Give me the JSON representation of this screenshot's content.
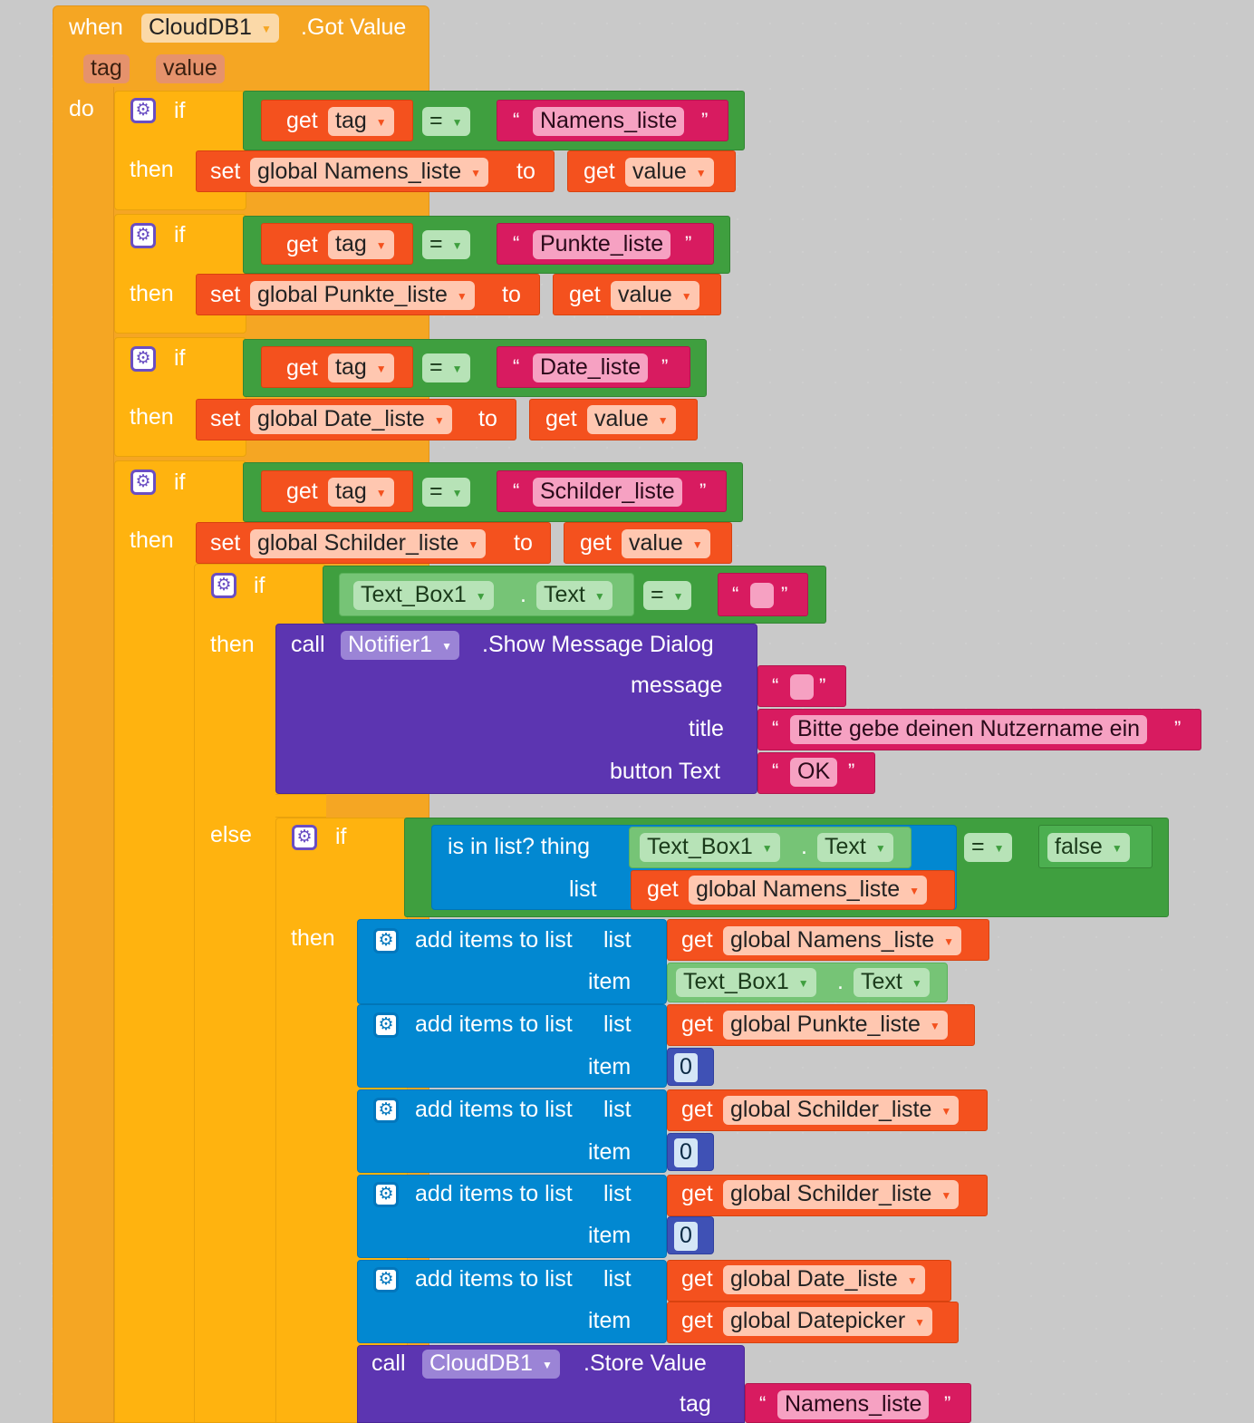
{
  "event": {
    "when": "when",
    "component": "CloudDB1",
    "event_name": ".Got Value",
    "params": [
      "tag",
      "value"
    ],
    "do": "do"
  },
  "kw": {
    "if": "if",
    "then": "then",
    "else": "else",
    "get": "get",
    "set": "set",
    "to": "to",
    "call": "call",
    "eq": "=",
    "tag": "tag",
    "value": "value",
    "dot": ".",
    "open_quote": "“",
    "close_quote": "”"
  },
  "branches": [
    {
      "tag_text": "Namens_liste",
      "global": "global Namens_liste"
    },
    {
      "tag_text": "Punkte_liste",
      "global": "global Punkte_liste"
    },
    {
      "tag_text": "Date_liste",
      "global": "global Date_liste"
    },
    {
      "tag_text": "Schilder_liste",
      "global": "global Schilder_liste"
    }
  ],
  "textbox": {
    "component": "Text_Box1",
    "property": "Text"
  },
  "notifier": {
    "component": "Notifier1",
    "method": ".Show Message Dialog",
    "message_label": "message",
    "title_label": "title",
    "button_label": "button Text",
    "title": "Bitte gebe deinen Nutzername ein",
    "button": "OK"
  },
  "inlist": {
    "label": "is in list? thing",
    "list_label": "list",
    "list_var": "global Namens_liste",
    "false_value": "false"
  },
  "add_items": {
    "label": "add items to list",
    "list_label": "list",
    "item_label": "item",
    "rows": [
      {
        "list": "global Namens_liste",
        "item_kind": "textbox"
      },
      {
        "list": "global Punkte_liste",
        "item": "0"
      },
      {
        "list": "global Schilder_liste",
        "item": "0"
      },
      {
        "list": "global Schilder_liste",
        "item": "0"
      },
      {
        "list": "global Date_liste",
        "item": "global Datepicker"
      }
    ]
  },
  "store": {
    "component": "CloudDB1",
    "method": ".Store Value",
    "tag_label": "tag",
    "tag_value": "Namens_liste"
  },
  "colors": {
    "event": "#f5a623",
    "control": "#ffb30f",
    "compare": "#3f9f3f",
    "variable": "#f4511e",
    "text": "#d81b60",
    "procedure": "#5c35b1",
    "list": "#0288d1",
    "textbox": "#76c476"
  }
}
